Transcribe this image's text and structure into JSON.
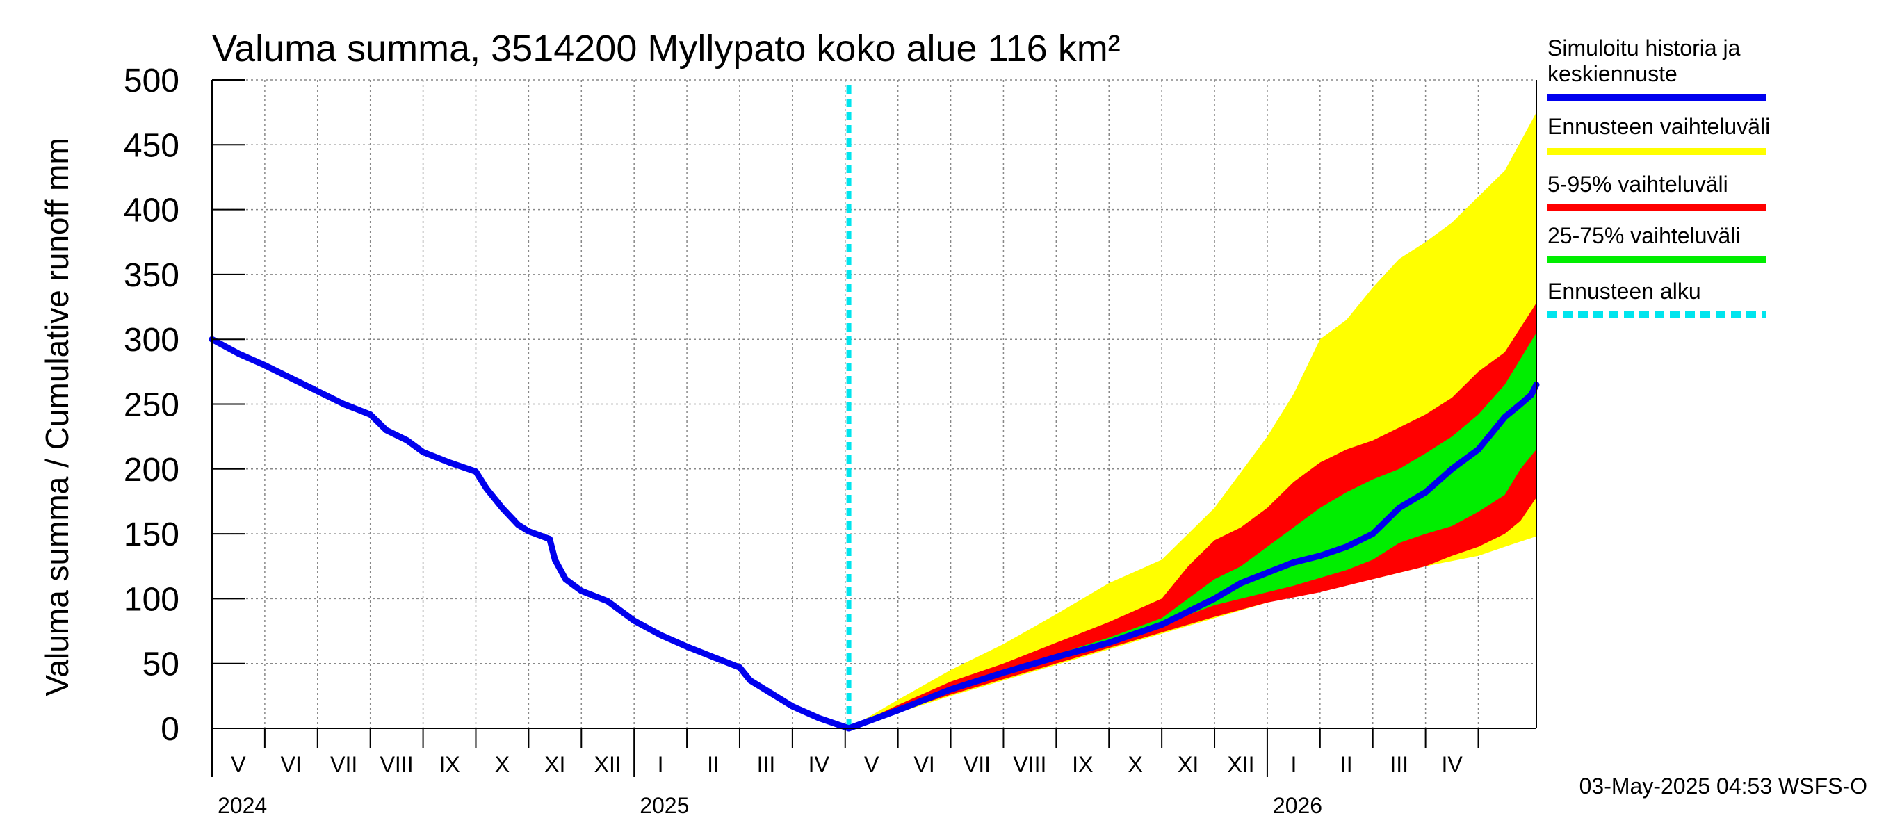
{
  "chart_data": {
    "type": "area",
    "title": "Valuma summa, 3514200 Myllypato koko alue 116 km²",
    "ylabel": "Valuma summa / Cumulative runoff    mm",
    "ylim": [
      0,
      500
    ],
    "yticks": [
      "0",
      "50",
      "100",
      "150",
      "200",
      "250",
      "300",
      "350",
      "400",
      "450",
      "500"
    ],
    "x_axis": {
      "start": "2024-05-01",
      "end": "2026-05-01",
      "forecast_start": "2025-05-03",
      "months": [
        "V",
        "VI",
        "VII",
        "VIII",
        "IX",
        "X",
        "XI",
        "XII",
        "I",
        "II",
        "III",
        "IV",
        "V",
        "VI",
        "VII",
        "VIII",
        "IX",
        "X",
        "XI",
        "XII",
        "I",
        "II",
        "III",
        "IV"
      ],
      "years": [
        {
          "label": "2024",
          "month_index": 0
        },
        {
          "label": "2025",
          "month_index": 8
        },
        {
          "label": "2026",
          "month_index": 20
        }
      ]
    },
    "series_history": {
      "name": "Simuloitu historia ja keskiennuste",
      "color": "#0000ee",
      "points": [
        [
          0,
          300
        ],
        [
          0.5,
          289
        ],
        [
          1,
          280
        ],
        [
          1.5,
          270
        ],
        [
          2,
          260
        ],
        [
          2.5,
          250
        ],
        [
          3,
          242
        ],
        [
          3.3,
          230
        ],
        [
          3.7,
          222
        ],
        [
          4,
          213
        ],
        [
          4.5,
          205
        ],
        [
          5,
          198
        ],
        [
          5.2,
          185
        ],
        [
          5.5,
          170
        ],
        [
          5.8,
          157
        ],
        [
          6,
          152
        ],
        [
          6.4,
          146
        ],
        [
          6.5,
          130
        ],
        [
          6.7,
          115
        ],
        [
          7,
          106
        ],
        [
          7.5,
          98
        ],
        [
          8,
          83
        ],
        [
          8.5,
          72
        ],
        [
          9,
          63
        ],
        [
          9.5,
          55
        ],
        [
          10,
          47
        ],
        [
          10.2,
          37
        ],
        [
          10.6,
          27
        ],
        [
          11,
          17
        ],
        [
          11.5,
          8
        ],
        [
          12.07,
          0
        ]
      ]
    },
    "series_median": {
      "name": "Simuloitu historia ja keskiennuste",
      "color": "#0000ee",
      "points": [
        [
          12.07,
          0
        ],
        [
          13,
          14
        ],
        [
          14,
          30
        ],
        [
          15,
          43
        ],
        [
          16,
          55
        ],
        [
          17,
          66
        ],
        [
          18,
          80
        ],
        [
          19,
          100
        ],
        [
          19.5,
          112
        ],
        [
          20,
          120
        ],
        [
          20.5,
          128
        ],
        [
          21,
          133
        ],
        [
          21.5,
          140
        ],
        [
          22,
          150
        ],
        [
          22.5,
          170
        ],
        [
          23,
          182
        ],
        [
          23.5,
          200
        ],
        [
          24,
          215
        ],
        [
          24.5,
          240
        ],
        [
          24.8,
          250
        ],
        [
          25,
          257
        ],
        [
          25.1,
          265
        ]
      ]
    },
    "band_outer": {
      "name": "Ennusteen vaihteluväli",
      "color": "#ffff00",
      "upper": [
        [
          12.07,
          0
        ],
        [
          13,
          22
        ],
        [
          14,
          45
        ],
        [
          15,
          65
        ],
        [
          16,
          88
        ],
        [
          17,
          112
        ],
        [
          18,
          130
        ],
        [
          19,
          170
        ],
        [
          20,
          225
        ],
        [
          20.5,
          258
        ],
        [
          21,
          300
        ],
        [
          21.5,
          315
        ],
        [
          22,
          340
        ],
        [
          22.5,
          362
        ],
        [
          23,
          375
        ],
        [
          23.5,
          390
        ],
        [
          24,
          410
        ],
        [
          24.5,
          430
        ],
        [
          25.1,
          475
        ]
      ],
      "lower": [
        [
          25.1,
          148
        ],
        [
          24.5,
          140
        ],
        [
          24,
          133
        ],
        [
          23,
          125
        ],
        [
          22,
          115
        ],
        [
          21,
          107
        ],
        [
          20,
          97
        ],
        [
          19,
          85
        ],
        [
          18,
          73
        ],
        [
          17,
          61
        ],
        [
          16,
          49
        ],
        [
          15,
          37
        ],
        [
          14,
          25
        ],
        [
          13,
          12
        ],
        [
          12.07,
          0
        ]
      ]
    },
    "band_90": {
      "name": "5-95% vaihteluväli",
      "color": "#ff0000",
      "upper": [
        [
          12.07,
          0
        ],
        [
          13,
          18
        ],
        [
          14,
          36
        ],
        [
          15,
          50
        ],
        [
          16,
          66
        ],
        [
          17,
          82
        ],
        [
          18,
          100
        ],
        [
          18.5,
          125
        ],
        [
          19,
          145
        ],
        [
          19.5,
          155
        ],
        [
          20,
          170
        ],
        [
          20.5,
          190
        ],
        [
          21,
          205
        ],
        [
          21.5,
          215
        ],
        [
          22,
          222
        ],
        [
          22.5,
          232
        ],
        [
          23,
          242
        ],
        [
          23.5,
          255
        ],
        [
          24,
          275
        ],
        [
          24.5,
          290
        ],
        [
          25.1,
          328
        ]
      ],
      "lower": [
        [
          25.1,
          178
        ],
        [
          24.8,
          160
        ],
        [
          24.5,
          150
        ],
        [
          24,
          140
        ],
        [
          23.5,
          133
        ],
        [
          23,
          125
        ],
        [
          22,
          115
        ],
        [
          21,
          105
        ],
        [
          20,
          97
        ],
        [
          19,
          86
        ],
        [
          18,
          74
        ],
        [
          17,
          62
        ],
        [
          16,
          50
        ],
        [
          15,
          38
        ],
        [
          14,
          26
        ],
        [
          13,
          13
        ],
        [
          12.07,
          0
        ]
      ]
    },
    "band_50": {
      "name": "25-75% vaihteluväli",
      "color": "#00ee00",
      "upper": [
        [
          12.07,
          0
        ],
        [
          13,
          15
        ],
        [
          14,
          31
        ],
        [
          15,
          45
        ],
        [
          16,
          57
        ],
        [
          17,
          70
        ],
        [
          18,
          85
        ],
        [
          18.5,
          100
        ],
        [
          19,
          115
        ],
        [
          19.5,
          125
        ],
        [
          20,
          140
        ],
        [
          20.5,
          155
        ],
        [
          21,
          170
        ],
        [
          21.5,
          182
        ],
        [
          22,
          192
        ],
        [
          22.5,
          200
        ],
        [
          23,
          212
        ],
        [
          23.5,
          225
        ],
        [
          24,
          242
        ],
        [
          24.5,
          265
        ],
        [
          25.1,
          305
        ]
      ],
      "lower": [
        [
          25.1,
          215
        ],
        [
          24.8,
          200
        ],
        [
          24.5,
          180
        ],
        [
          24,
          167
        ],
        [
          23.5,
          156
        ],
        [
          23,
          150
        ],
        [
          22.5,
          143
        ],
        [
          22,
          130
        ],
        [
          21.5,
          122
        ],
        [
          21,
          116
        ],
        [
          20.5,
          110
        ],
        [
          20,
          105
        ],
        [
          19,
          95
        ],
        [
          18,
          80
        ],
        [
          17,
          65
        ],
        [
          16,
          53
        ],
        [
          15,
          41
        ],
        [
          14,
          28
        ],
        [
          13,
          14
        ],
        [
          12.07,
          0
        ]
      ]
    },
    "legend": [
      {
        "label_lines": [
          "Simuloitu historia ja",
          "keskiennuste"
        ],
        "color": "#0000ee",
        "style": "solid"
      },
      {
        "label_lines": [
          "Ennusteen vaihteluväli"
        ],
        "color": "#ffff00",
        "style": "solid"
      },
      {
        "label_lines": [
          "5-95% vaihteluväli"
        ],
        "color": "#ff0000",
        "style": "solid"
      },
      {
        "label_lines": [
          "25-75% vaihteluväli"
        ],
        "color": "#00ee00",
        "style": "solid"
      },
      {
        "label_lines": [
          "Ennusteen alku"
        ],
        "color": "#00e5ee",
        "style": "dashed"
      }
    ],
    "timestamp": "03-May-2025 04:53 WSFS-O"
  }
}
